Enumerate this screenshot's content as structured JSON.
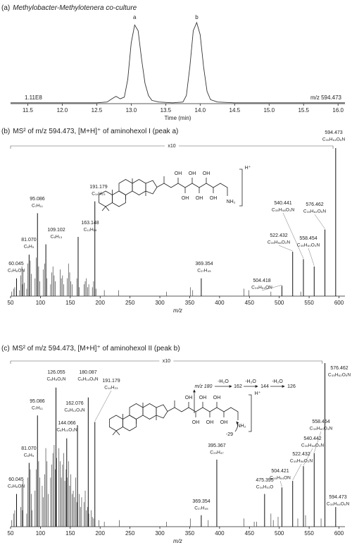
{
  "chart_data": [
    {
      "type": "line",
      "panel": "(a)",
      "title": "Methylobacter-Methylotenera co-culture",
      "xlabel": "Time (min)",
      "x": [
        11.25,
        11.5,
        12.0,
        12.5,
        12.65,
        12.72,
        12.78,
        12.84,
        12.9,
        12.95,
        13.0,
        13.05,
        13.1,
        13.15,
        13.2,
        13.25,
        13.3,
        13.4,
        13.6,
        13.75,
        13.8,
        13.85,
        13.9,
        13.95,
        14.0,
        14.05,
        14.1,
        14.15,
        14.25,
        14.5,
        15.0,
        15.5,
        16.0,
        16.1
      ],
      "values": [
        1,
        1,
        1,
        1,
        2,
        6,
        9,
        6,
        8,
        30,
        75,
        97,
        90,
        55,
        25,
        10,
        4,
        2,
        1,
        2,
        10,
        45,
        90,
        100,
        85,
        45,
        15,
        5,
        2,
        1,
        1,
        1,
        1,
        1
      ],
      "color": "#333333",
      "xlim": [
        11.25,
        16.1
      ],
      "ylim": [
        0,
        100
      ],
      "xticks": [
        11.5,
        {
          "value": 12,
          "label": "12.0"
        },
        12.5,
        {
          "value": 13,
          "label": "13.0"
        },
        13.5,
        {
          "value": 14,
          "label": "14.0"
        },
        14.5,
        {
          "value": 15,
          "label": "15.0"
        },
        15.5,
        {
          "value": 16,
          "label": "16.0"
        }
      ],
      "annotations": [
        {
          "x": 13.05,
          "text": "a"
        },
        {
          "x": 13.95,
          "text": "b"
        }
      ],
      "intensity_label": "1.11E8",
      "ion_label": "m/z 594.473"
    },
    {
      "type": "stick",
      "panel": "(b)",
      "title": "MS² of m/z 594.473, [M+H]⁺ of aminohexol I (peak a)",
      "xlabel": "m/z",
      "color": "#444444",
      "xlim": [
        50,
        610
      ],
      "ylim": [
        0,
        100
      ],
      "xticks": [
        50,
        100,
        150,
        200,
        250,
        300,
        350,
        400,
        450,
        500,
        550,
        600
      ],
      "x": [
        52,
        55,
        57,
        65,
        67,
        69,
        70,
        71,
        73,
        77,
        79,
        83,
        85,
        91,
        93,
        97,
        99,
        105,
        107,
        111,
        117,
        119,
        121,
        123,
        125,
        133,
        135,
        137,
        139,
        145,
        147,
        149,
        151,
        153,
        161,
        165,
        173,
        175,
        177,
        179,
        181,
        187,
        189,
        193,
        207,
        231,
        311,
        351,
        355,
        441,
        449,
        486,
        536
      ],
      "values": [
        3,
        5,
        6,
        4,
        14,
        20,
        8,
        18,
        9,
        5,
        22,
        24,
        15,
        12,
        26,
        20,
        10,
        18,
        22,
        12,
        8,
        16,
        20,
        14,
        10,
        18,
        12,
        14,
        8,
        12,
        22,
        16,
        10,
        8,
        12,
        6,
        8,
        10,
        12,
        6,
        8,
        6,
        10,
        5,
        4,
        4,
        3,
        6,
        4,
        5,
        4,
        3,
        3
      ],
      "peaks": [
        {
          "mz": 60.045,
          "label": "60.045",
          "intensity": 12,
          "formula": "C₂H₆ON"
        },
        {
          "mz": 81.07,
          "label": "81.070",
          "intensity": 28,
          "formula": "C₆H₉"
        },
        {
          "mz": 95.086,
          "label": "95.086",
          "intensity": 56,
          "formula": "C₇H₁₁"
        },
        {
          "mz": 109.102,
          "label": "109.102",
          "intensity": 35,
          "formula": "C₈H₁₃"
        },
        {
          "mz": 163.148,
          "label": "163.148",
          "intensity": 40,
          "formula": "C₁₂H₁₉"
        },
        {
          "mz": 191.179,
          "label": "191.179",
          "intensity": 64,
          "formula": "C₁₄H₂₃"
        },
        {
          "mz": 369.354,
          "label": "369.354",
          "intensity": 12,
          "formula": "C₂₇H₄₅"
        },
        {
          "mz": 504.418,
          "label": "504.418",
          "intensity": 7,
          "formula": "C₃₅H₅₄ON"
        },
        {
          "mz": 522.432,
          "label": "522.432",
          "intensity": 30,
          "formula": "C₃₅H₅₆O₂N"
        },
        {
          "mz": 540.441,
          "label": "540.441",
          "intensity": 25,
          "formula": "C₃₅H₅₈O₃N"
        },
        {
          "mz": 558.454,
          "label": "558.454",
          "intensity": 20,
          "formula": "C₃₅H₆₀O₄N"
        },
        {
          "mz": 576.462,
          "label": "576.462",
          "intensity": 45,
          "formula": "C₃₅H₆₂O₅N"
        },
        {
          "mz": 594.473,
          "label": "594.473",
          "intensity": 100,
          "formula": "C₃₅H₆₄O₆N"
        }
      ],
      "magnification": {
        "label": "x10",
        "range": [
          50,
          590
        ]
      },
      "structure_labels": [
        "OH",
        "OH",
        "OH",
        "OH",
        "OH",
        "OH",
        "NH₂",
        "H⁺"
      ]
    },
    {
      "type": "stick",
      "panel": "(c)",
      "title": "MS² of m/z 594.473, [M+H]⁺ of aminohexol II (peak b)",
      "xlabel": "m/z",
      "color": "#444444",
      "xlim": [
        50,
        610
      ],
      "ylim": [
        0,
        100
      ],
      "xticks": [
        50,
        100,
        150,
        200,
        250,
        300,
        350,
        400,
        450,
        500,
        550,
        600
      ],
      "x": [
        52,
        55,
        57,
        67,
        69,
        70,
        71,
        77,
        79,
        83,
        85,
        86,
        91,
        93,
        97,
        99,
        103,
        105,
        107,
        109,
        111,
        113,
        117,
        119,
        121,
        123,
        125,
        127,
        131,
        133,
        135,
        137,
        139,
        141,
        143,
        145,
        147,
        149,
        151,
        153,
        155,
        157,
        159,
        161,
        165,
        167,
        169,
        173,
        175,
        177,
        179,
        181,
        185,
        187,
        189,
        198,
        207,
        232,
        311,
        351,
        381,
        441,
        458,
        462,
        486,
        490,
        498,
        531,
        544,
        570
      ],
      "values": [
        4,
        8,
        10,
        12,
        25,
        10,
        28,
        8,
        30,
        35,
        20,
        10,
        22,
        35,
        40,
        30,
        25,
        18,
        32,
        48,
        40,
        20,
        30,
        38,
        45,
        50,
        35,
        42,
        48,
        40,
        30,
        38,
        45,
        28,
        35,
        30,
        40,
        25,
        32,
        20,
        22,
        18,
        30,
        15,
        20,
        12,
        18,
        15,
        22,
        10,
        12,
        8,
        10,
        6,
        5,
        4,
        3,
        4,
        3,
        5,
        4,
        5,
        3,
        3,
        8,
        4,
        6,
        5,
        7,
        5
      ],
      "peaks": [
        {
          "mz": 60.045,
          "label": "60.045",
          "intensity": 20,
          "formula": "C₂H₆ON"
        },
        {
          "mz": 81.07,
          "label": "81.070",
          "intensity": 39,
          "formula": "C₆H₉"
        },
        {
          "mz": 95.086,
          "label": "95.086",
          "intensity": 68,
          "formula": "C₇H₁₁"
        },
        {
          "mz": 126.055,
          "label": "126.055",
          "intensity": 85,
          "formula": "C₆H₈O₂N"
        },
        {
          "mz": 144.066,
          "label": "144.066",
          "intensity": 54,
          "formula": "C₆H₁₀O₃N"
        },
        {
          "mz": 162.076,
          "label": "162.076",
          "intensity": 62,
          "formula": "C₆H₁₂O₄N"
        },
        {
          "mz": 180.087,
          "label": "180.087",
          "intensity": 79,
          "formula": "C₆H₁₄O₅N"
        },
        {
          "mz": 191.179,
          "label": "191.179",
          "intensity": 64,
          "formula": "C₁₄H₂₃"
        },
        {
          "mz": 369.354,
          "label": "369.354",
          "intensity": 7,
          "formula": "C₂₇H₄₅"
        },
        {
          "mz": 395.367,
          "label": "395.367",
          "intensity": 41,
          "formula": "C₂₉H₄₇"
        },
        {
          "mz": 475.395,
          "label": "475.395",
          "intensity": 20,
          "formula": "C₃₄H₅₁O"
        },
        {
          "mz": 504.421,
          "label": "504.421",
          "intensity": 24,
          "formula": "C₃₅H₅₄ON"
        },
        {
          "mz": 522.432,
          "label": "522.432",
          "intensity": 28,
          "formula": "C₃₅H₅₆O₂N"
        },
        {
          "mz": 540.442,
          "label": "540.442",
          "intensity": 37,
          "formula": "C₃₅H₅₈O₃N"
        },
        {
          "mz": 558.454,
          "label": "558.454",
          "intensity": 45,
          "formula": "C₃₅H₆₀O₄N"
        },
        {
          "mz": 576.462,
          "label": "576.462",
          "intensity": 100,
          "formula": "C₃₅H₆₂O₅N"
        },
        {
          "mz": 594.473,
          "label": "594.473",
          "intensity": 12,
          "formula": "C₃₅H₆₄O₆N"
        }
      ],
      "magnification": {
        "label": "x10",
        "range": [
          50,
          572
        ]
      },
      "structure_labels": [
        "OH",
        "OH",
        "OH",
        "OH",
        "OH",
        "OH",
        "NH₂",
        "H⁺",
        "m/z 180",
        "-H₂O",
        "162",
        "-H₂O",
        "144",
        "-H₂O",
        "126",
        "-29"
      ]
    }
  ]
}
